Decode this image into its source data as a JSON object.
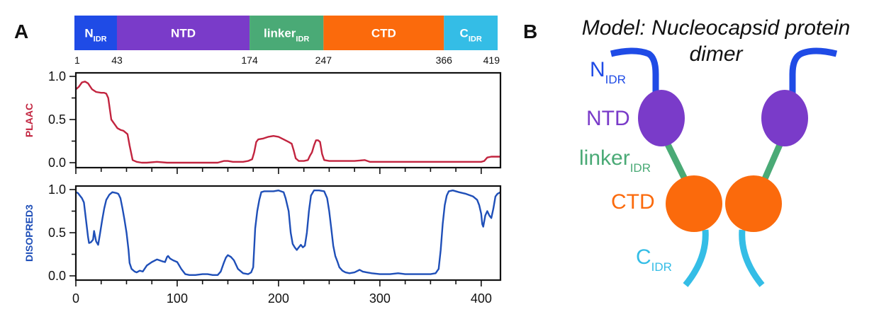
{
  "panel_a": {
    "letter": "A",
    "domain_bar": {
      "segments": [
        {
          "label": "N",
          "sub": "IDR",
          "start": 1,
          "end": 43,
          "color": "#1f4be6"
        },
        {
          "label": "NTD",
          "sub": "",
          "start": 43,
          "end": 174,
          "color": "#7a3bc9"
        },
        {
          "label": "linker",
          "sub": "IDR",
          "start": 174,
          "end": 247,
          "color": "#4aaa76"
        },
        {
          "label": "CTD",
          "sub": "",
          "start": 247,
          "end": 366,
          "color": "#fb6a0c"
        },
        {
          "label": "C",
          "sub": "IDR",
          "start": 366,
          "end": 419,
          "color": "#34bde6"
        }
      ],
      "boundary_labels": [
        "1",
        "43",
        "174",
        "247",
        "366",
        "419"
      ]
    }
  },
  "panel_b": {
    "letter": "B",
    "title_line1": "Model: Nucleocapsid protein",
    "title_line2": "dimer",
    "labels": [
      {
        "text": "N",
        "sub": "IDR",
        "color": "#1f4be6"
      },
      {
        "text": "NTD",
        "sub": "",
        "color": "#7a3bc9"
      },
      {
        "text": "linker",
        "sub": "IDR",
        "color": "#4aaa76"
      },
      {
        "text": "CTD",
        "sub": "",
        "color": "#fb6a0c"
      },
      {
        "text": "C",
        "sub": "IDR",
        "color": "#34bde6"
      }
    ]
  },
  "chart_data": [
    {
      "type": "line",
      "title": "",
      "xlabel": "",
      "ylabel": "PLAAC",
      "ylabel_color": "#c2243f",
      "line_color": "#c2243f",
      "xlim": [
        0,
        419
      ],
      "ylim": [
        0,
        1
      ],
      "yticks": [
        "0.0",
        "0.5",
        "1.0"
      ],
      "ytick_values": [
        0,
        0.5,
        1.0
      ],
      "x": [
        0,
        3,
        6,
        9,
        12,
        16,
        20,
        25,
        28,
        30,
        32,
        35,
        38,
        41,
        44,
        47,
        49,
        51,
        53,
        56,
        60,
        65,
        70,
        80,
        90,
        100,
        120,
        140,
        146,
        150,
        155,
        165,
        170,
        174,
        176,
        178,
        180,
        185,
        190,
        195,
        200,
        205,
        210,
        213,
        215,
        217,
        220,
        225,
        229,
        231,
        233,
        235,
        237,
        239,
        241,
        243,
        245,
        250,
        260,
        275,
        285,
        290,
        300,
        350,
        400,
        403,
        406,
        410,
        419
      ],
      "y": [
        0.85,
        0.88,
        0.93,
        0.94,
        0.92,
        0.85,
        0.82,
        0.81,
        0.81,
        0.8,
        0.75,
        0.5,
        0.45,
        0.4,
        0.38,
        0.37,
        0.35,
        0.33,
        0.2,
        0.03,
        0.01,
        0.0,
        0.0,
        0.01,
        0.0,
        0.0,
        0.0,
        0.0,
        0.02,
        0.02,
        0.01,
        0.01,
        0.02,
        0.04,
        0.12,
        0.24,
        0.27,
        0.28,
        0.3,
        0.31,
        0.3,
        0.27,
        0.24,
        0.22,
        0.14,
        0.05,
        0.02,
        0.02,
        0.03,
        0.08,
        0.12,
        0.2,
        0.26,
        0.26,
        0.24,
        0.1,
        0.03,
        0.02,
        0.02,
        0.02,
        0.03,
        0.01,
        0.01,
        0.01,
        0.01,
        0.02,
        0.06,
        0.07,
        0.07
      ]
    },
    {
      "type": "line",
      "title": "",
      "xlabel": "",
      "ylabel": "DISOPRED3",
      "ylabel_color": "#1f4fb8",
      "line_color": "#1f4fb8",
      "xlim": [
        0,
        419
      ],
      "ylim": [
        0,
        1
      ],
      "xticks": [
        "0",
        "100",
        "200",
        "300",
        "400"
      ],
      "xtick_values": [
        0,
        100,
        200,
        300,
        400
      ],
      "yticks": [
        "0.0",
        "0.5",
        "1.0"
      ],
      "ytick_values": [
        0,
        0.5,
        1.0
      ],
      "x": [
        0,
        2,
        4,
        6,
        8,
        10,
        12,
        13,
        15,
        17,
        18,
        20,
        22,
        24,
        26,
        28,
        30,
        33,
        36,
        40,
        42,
        44,
        46,
        48,
        50,
        52,
        53,
        55,
        58,
        60,
        63,
        66,
        70,
        75,
        80,
        85,
        88,
        90,
        91,
        93,
        96,
        100,
        104,
        108,
        112,
        118,
        125,
        130,
        135,
        140,
        143,
        146,
        148,
        150,
        153,
        156,
        160,
        165,
        170,
        173,
        175,
        177,
        179,
        181,
        183,
        186,
        190,
        195,
        200,
        205,
        207,
        210,
        212,
        214,
        216,
        218,
        220,
        222,
        224,
        226,
        228,
        230,
        232,
        235,
        240,
        245,
        248,
        250,
        252,
        254,
        256,
        258,
        260,
        263,
        266,
        270,
        275,
        280,
        283,
        287,
        292,
        300,
        310,
        318,
        325,
        335,
        350,
        355,
        358,
        360,
        362,
        364,
        366,
        368,
        372,
        378,
        385,
        392,
        396,
        398,
        400,
        401,
        402,
        404,
        406,
        408,
        410,
        412,
        414,
        416,
        419
      ],
      "y": [
        0.97,
        0.96,
        0.93,
        0.9,
        0.85,
        0.65,
        0.45,
        0.38,
        0.39,
        0.42,
        0.52,
        0.4,
        0.36,
        0.5,
        0.65,
        0.78,
        0.88,
        0.94,
        0.97,
        0.96,
        0.95,
        0.9,
        0.78,
        0.65,
        0.5,
        0.3,
        0.15,
        0.08,
        0.05,
        0.04,
        0.06,
        0.05,
        0.12,
        0.16,
        0.19,
        0.17,
        0.16,
        0.22,
        0.23,
        0.2,
        0.18,
        0.16,
        0.08,
        0.02,
        0.01,
        0.01,
        0.02,
        0.02,
        0.01,
        0.01,
        0.05,
        0.15,
        0.21,
        0.24,
        0.22,
        0.18,
        0.08,
        0.03,
        0.02,
        0.04,
        0.1,
        0.55,
        0.75,
        0.88,
        0.97,
        0.98,
        0.98,
        0.98,
        0.99,
        0.97,
        0.9,
        0.75,
        0.5,
        0.37,
        0.33,
        0.3,
        0.33,
        0.36,
        0.33,
        0.35,
        0.5,
        0.75,
        0.93,
        0.99,
        0.99,
        0.98,
        0.9,
        0.75,
        0.55,
        0.35,
        0.23,
        0.17,
        0.1,
        0.06,
        0.04,
        0.03,
        0.04,
        0.07,
        0.05,
        0.04,
        0.03,
        0.02,
        0.02,
        0.03,
        0.02,
        0.02,
        0.02,
        0.03,
        0.08,
        0.3,
        0.6,
        0.82,
        0.93,
        0.98,
        0.99,
        0.97,
        0.95,
        0.92,
        0.88,
        0.82,
        0.72,
        0.6,
        0.57,
        0.7,
        0.75,
        0.7,
        0.67,
        0.78,
        0.92,
        0.95,
        0.97
      ]
    }
  ]
}
